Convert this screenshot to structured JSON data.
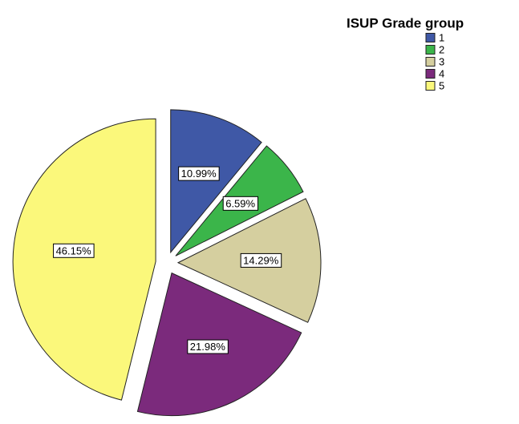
{
  "chart_data": {
    "type": "pie",
    "legend_title": "ISUP Grade group",
    "categories": [
      "1",
      "2",
      "3",
      "4",
      "5"
    ],
    "values": [
      10.99,
      6.59,
      14.29,
      21.98,
      46.15
    ],
    "value_labels": [
      "10.99%",
      "6.59%",
      "14.29%",
      "21.98%",
      "46.15%"
    ],
    "colors": [
      "#3f58a6",
      "#3bb54a",
      "#d5cf9f",
      "#7b2a7c",
      "#fbf87b"
    ],
    "legend": "top-right"
  }
}
